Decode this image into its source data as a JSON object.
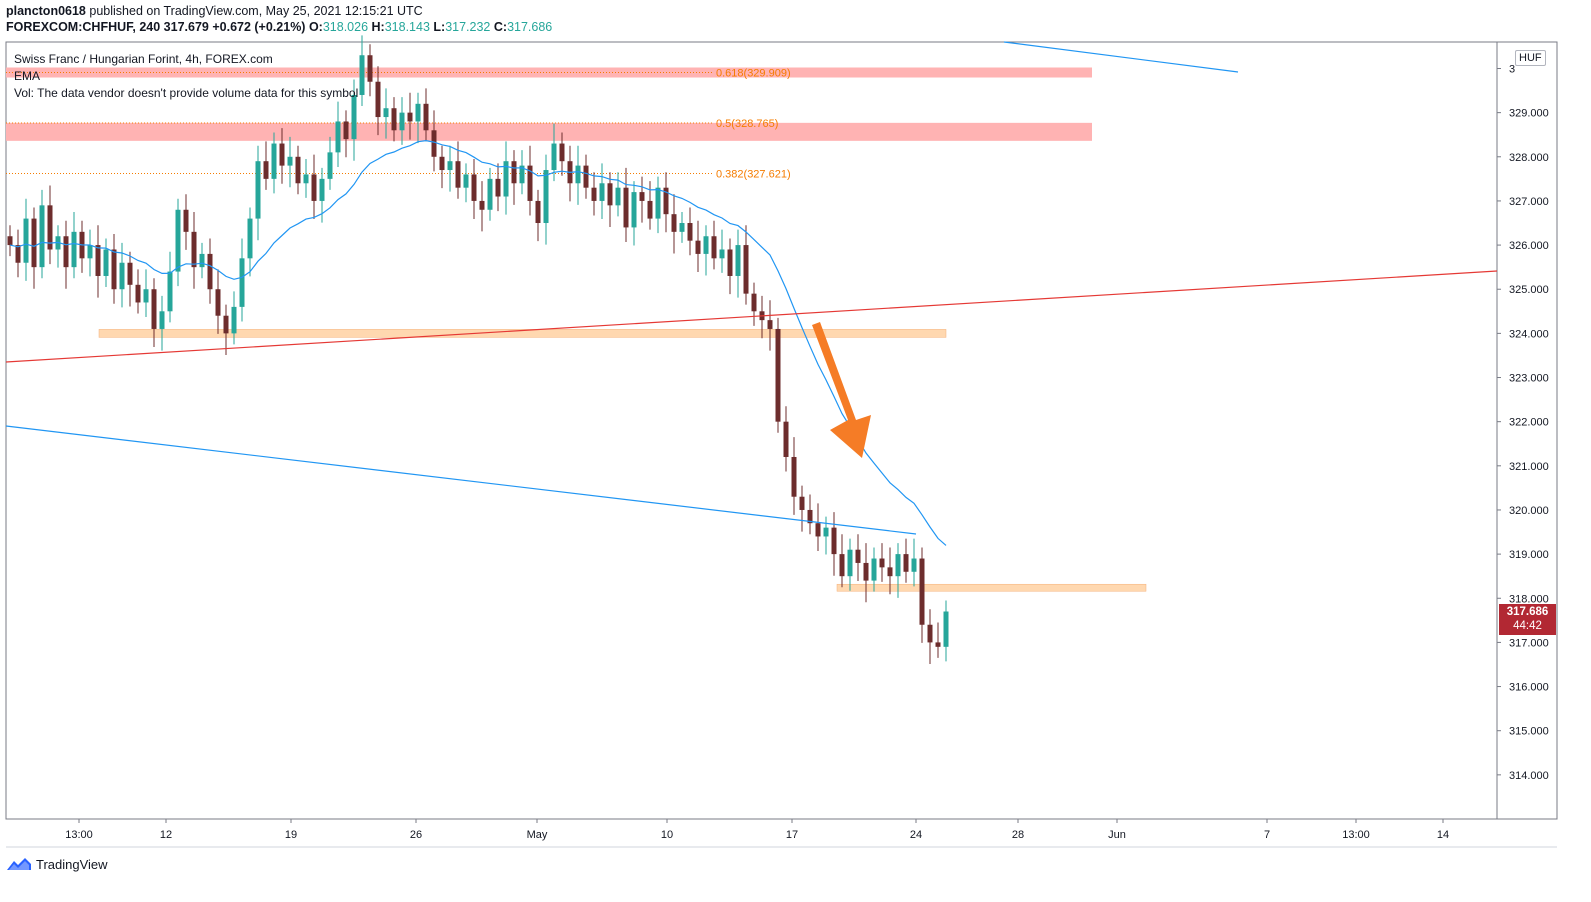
{
  "header": {
    "user": "plancton0618",
    "published": "published on TradingView.com, May 25, 2021 12:15:21 UTC",
    "symbol": "FOREXCOM:CHFHUF, 240",
    "last": "317.679",
    "change": "+0.672 (+0.21%)",
    "o_label": "O:",
    "o": "318.026",
    "h_label": "H:",
    "h": "318.143",
    "l_label": "L:",
    "l": "317.232",
    "c_label": "C:",
    "c": "317.686"
  },
  "legend": {
    "title": "Swiss Franc / Hungarian Forint, 4h, FOREX.com",
    "ema": "EMA",
    "vol": "Vol: The data vendor doesn't provide volume data for this symbol"
  },
  "price_tag": {
    "price": "317.686",
    "countdown": "44:42"
  },
  "currency": "HUF",
  "footer": {
    "brand": "TradingView"
  },
  "colors": {
    "up": "#26a69a",
    "down": "#6d2d2d",
    "ema": "#2196f3",
    "trend_red": "#e53935",
    "trend_blue": "#2196f3",
    "fib_zone": "#ffb3b3",
    "support_zone": "#ffd8b0",
    "arrow": "#f57c26",
    "fib_text": "#f57c00"
  },
  "chart_data": {
    "type": "candlestick",
    "title": "Swiss Franc / Hungarian Forint, 4h, FOREX.com",
    "ylim": [
      313,
      330.6
    ],
    "y_ticks": [
      "314.000",
      "315.000",
      "316.000",
      "317.000",
      "318.000",
      "319.000",
      "320.000",
      "321.000",
      "322.000",
      "323.000",
      "324.000",
      "325.000",
      "326.000",
      "327.000",
      "328.000",
      "329.000",
      "3"
    ],
    "x_ticks": [
      "13:00",
      "12",
      "19",
      "26",
      "May",
      "10",
      "17",
      "24",
      "28",
      "Jun",
      "7",
      "13:00",
      "14"
    ],
    "fib_levels": [
      {
        "label": "0.618(329.909)",
        "value": 329.909
      },
      {
        "label": "0.5(328.765)",
        "value": 328.765
      },
      {
        "label": "0.382(327.621)",
        "value": 327.621
      }
    ],
    "support_zones": [
      324.0,
      318.25
    ],
    "price_path": [
      326.0,
      325.6,
      326.6,
      325.5,
      326.9,
      325.9,
      326.2,
      325.5,
      326.3,
      325.7,
      326.0,
      325.3,
      325.9,
      325.0,
      325.6,
      325.1,
      324.7,
      325.0,
      324.1,
      324.5,
      325.4,
      326.8,
      326.3,
      325.5,
      325.8,
      325.0,
      324.4,
      324.0,
      324.6,
      325.7,
      326.6,
      327.9,
      327.5,
      328.3,
      327.8,
      328.0,
      327.4,
      327.6,
      327.0,
      327.5,
      328.1,
      328.8,
      328.4,
      329.4,
      330.3,
      329.7,
      328.9,
      329.1,
      328.6,
      329.0,
      328.8,
      329.2,
      328.6,
      328.0,
      327.7,
      327.9,
      327.3,
      327.6,
      327.0,
      326.8,
      327.5,
      327.1,
      327.9,
      327.4,
      327.8,
      327.0,
      326.5,
      327.7,
      328.3,
      327.9,
      327.4,
      327.8,
      327.3,
      327.0,
      327.4,
      326.9,
      327.3,
      326.4,
      327.2,
      327.0,
      326.6,
      327.3,
      326.7,
      326.3,
      326.5,
      326.1,
      325.8,
      326.2,
      325.7,
      325.9,
      325.3,
      326.0,
      324.9,
      324.5,
      324.3,
      324.1,
      322.0,
      321.2,
      320.3,
      320.0,
      319.7,
      319.4,
      319.6,
      319.0,
      318.5,
      319.1,
      318.8,
      318.4,
      318.9,
      318.7,
      318.5,
      319.0,
      318.6,
      318.9,
      317.4,
      317.0,
      316.9,
      317.7
    ]
  }
}
